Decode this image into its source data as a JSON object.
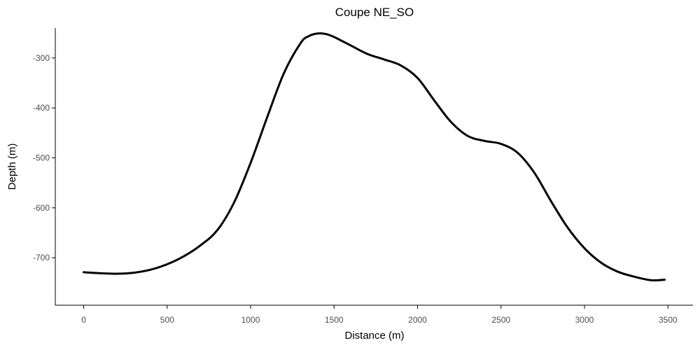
{
  "chart_data": {
    "type": "line",
    "title": "Coupe NE_SO",
    "xlabel": "Distance (m)",
    "ylabel": "Depth (m)",
    "xlim": [
      -170,
      3650
    ],
    "ylim": [
      -795,
      -240
    ],
    "x_ticks": [
      0,
      500,
      1000,
      1500,
      2000,
      2500,
      3000,
      3500
    ],
    "x_tick_labels": [
      "0",
      "500",
      "1000",
      "1500",
      "2000",
      "2500",
      "3000",
      "3500"
    ],
    "y_ticks": [
      -700,
      -600,
      -500,
      -400,
      -300
    ],
    "y_tick_labels": [
      "-700",
      "-600",
      "-500",
      "-400",
      "-300"
    ],
    "grid": false,
    "legend": "none",
    "line_color": "#000000",
    "series": [
      {
        "x": [
          0,
          100,
          200,
          300,
          400,
          500,
          600,
          700,
          800,
          900,
          1000,
          1100,
          1200,
          1300,
          1350,
          1400,
          1450,
          1500,
          1600,
          1700,
          1800,
          1900,
          2000,
          2100,
          2200,
          2300,
          2400,
          2500,
          2600,
          2700,
          2800,
          2900,
          3000,
          3100,
          3200,
          3300,
          3400,
          3480
        ],
        "y": [
          -729,
          -731,
          -732,
          -730,
          -724,
          -713,
          -697,
          -675,
          -645,
          -590,
          -510,
          -418,
          -330,
          -270,
          -256,
          -251,
          -252,
          -258,
          -275,
          -292,
          -303,
          -315,
          -340,
          -385,
          -428,
          -456,
          -466,
          -472,
          -490,
          -530,
          -587,
          -640,
          -681,
          -710,
          -728,
          -738,
          -745,
          -744
        ]
      }
    ]
  }
}
